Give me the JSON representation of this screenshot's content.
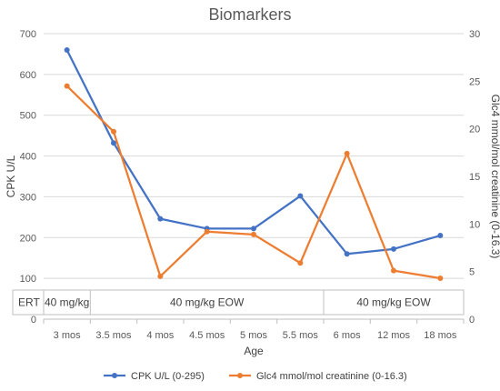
{
  "chart_data": {
    "type": "line",
    "title": "Biomarkers",
    "xlabel": "Age",
    "ylabel": "CPK U/L",
    "y2label": "Glc4 mmol/mol creatinine (0-16.3)",
    "categories": [
      "3 mos",
      "3.5 mos",
      "4 mos",
      "4.5 mos",
      "5 mos",
      "5.5 mos",
      "6 mos",
      "12 mos",
      "18 mos"
    ],
    "ylim": [
      0,
      700
    ],
    "yticks": [
      0,
      100,
      200,
      300,
      400,
      500,
      600,
      700
    ],
    "y2lim": [
      0,
      30
    ],
    "y2ticks": [
      0,
      5,
      10,
      15,
      20,
      25,
      30
    ],
    "grid": true,
    "legend_position": "bottom",
    "series": [
      {
        "name": "CPK U/L (0-295)",
        "axis": "left",
        "color": "#4472C4",
        "values": [
          660,
          432,
          246,
          222,
          222,
          302,
          160,
          172,
          205
        ]
      },
      {
        "name": "Glc4 mmol/mol creatinine (0-16.3)",
        "axis": "right",
        "color": "#ED7D31",
        "values": [
          24.5,
          19.7,
          4.5,
          9.2,
          8.9,
          5.9,
          17.4,
          5.1,
          4.3
        ]
      }
    ],
    "ert_row": {
      "label": "ERT",
      "segments": [
        {
          "label": "40 mg/kg",
          "from": 0,
          "to": 1
        },
        {
          "label": "40 mg/kg EOW",
          "from": 1,
          "to": 6
        },
        {
          "label": "40 mg/kg EOW",
          "from": 6,
          "to": 9
        }
      ]
    }
  }
}
